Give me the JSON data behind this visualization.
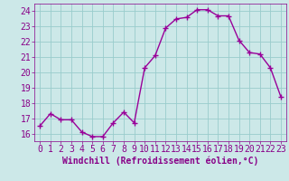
{
  "x": [
    0,
    1,
    2,
    3,
    4,
    5,
    6,
    7,
    8,
    9,
    10,
    11,
    12,
    13,
    14,
    15,
    16,
    17,
    18,
    19,
    20,
    21,
    22,
    23
  ],
  "y": [
    16.5,
    17.3,
    16.9,
    16.9,
    16.1,
    15.8,
    15.8,
    16.7,
    17.4,
    16.7,
    20.3,
    21.1,
    22.9,
    23.5,
    23.6,
    24.1,
    24.1,
    23.7,
    23.7,
    22.1,
    21.3,
    21.2,
    20.3,
    18.4
  ],
  "line_color": "#990099",
  "marker": "+",
  "marker_size": 4,
  "marker_edge_width": 1.0,
  "bg_color": "#cce8e8",
  "grid_color": "#99cccc",
  "xlabel": "Windchill (Refroidissement éolien,°C)",
  "xlabel_fontsize": 7,
  "tick_label_fontsize": 7,
  "ylim": [
    15.5,
    24.5
  ],
  "xlim": [
    -0.5,
    23.5
  ],
  "yticks": [
    16,
    17,
    18,
    19,
    20,
    21,
    22,
    23,
    24
  ],
  "xticks": [
    0,
    1,
    2,
    3,
    4,
    5,
    6,
    7,
    8,
    9,
    10,
    11,
    12,
    13,
    14,
    15,
    16,
    17,
    18,
    19,
    20,
    21,
    22,
    23
  ],
  "xtick_labels": [
    "0",
    "1",
    "2",
    "3",
    "4",
    "5",
    "6",
    "7",
    "8",
    "9",
    "10",
    "11",
    "12",
    "13",
    "14",
    "15",
    "16",
    "17",
    "18",
    "19",
    "20",
    "21",
    "22",
    "23"
  ],
  "line_width": 1.0
}
